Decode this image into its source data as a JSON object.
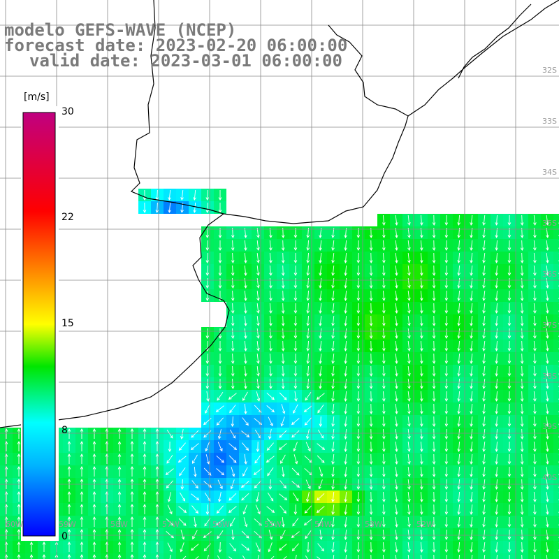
{
  "title": {
    "line1": "modelo GEFS-WAVE (NCEP)",
    "line2": "forecast date: 2023-02-20 06:00:00",
    "line3": "valid date: 2023-03-01 06:00:00"
  },
  "colorbar": {
    "unit": "[m/s]",
    "ticks": [
      "30",
      "22",
      "15",
      "8",
      "0"
    ],
    "min": 0,
    "max": 30,
    "stops": [
      {
        "v": 0,
        "c": "#0000ff"
      },
      {
        "v": 5,
        "c": "#00b4ff"
      },
      {
        "v": 8,
        "c": "#00ffff"
      },
      {
        "v": 12,
        "c": "#00e600"
      },
      {
        "v": 15,
        "c": "#ffff00"
      },
      {
        "v": 19,
        "c": "#ff8000"
      },
      {
        "v": 23,
        "c": "#ff0000"
      },
      {
        "v": 30,
        "c": "#c00080"
      }
    ]
  },
  "lat_labels": [
    "32S",
    "33S",
    "34S",
    "35S",
    "36S",
    "37S",
    "38S",
    "39S",
    "40S"
  ],
  "lon_labels": [
    "60W",
    "59W",
    "58W",
    "57W",
    "56W",
    "55W",
    "54W",
    "53W",
    "52W"
  ]
}
